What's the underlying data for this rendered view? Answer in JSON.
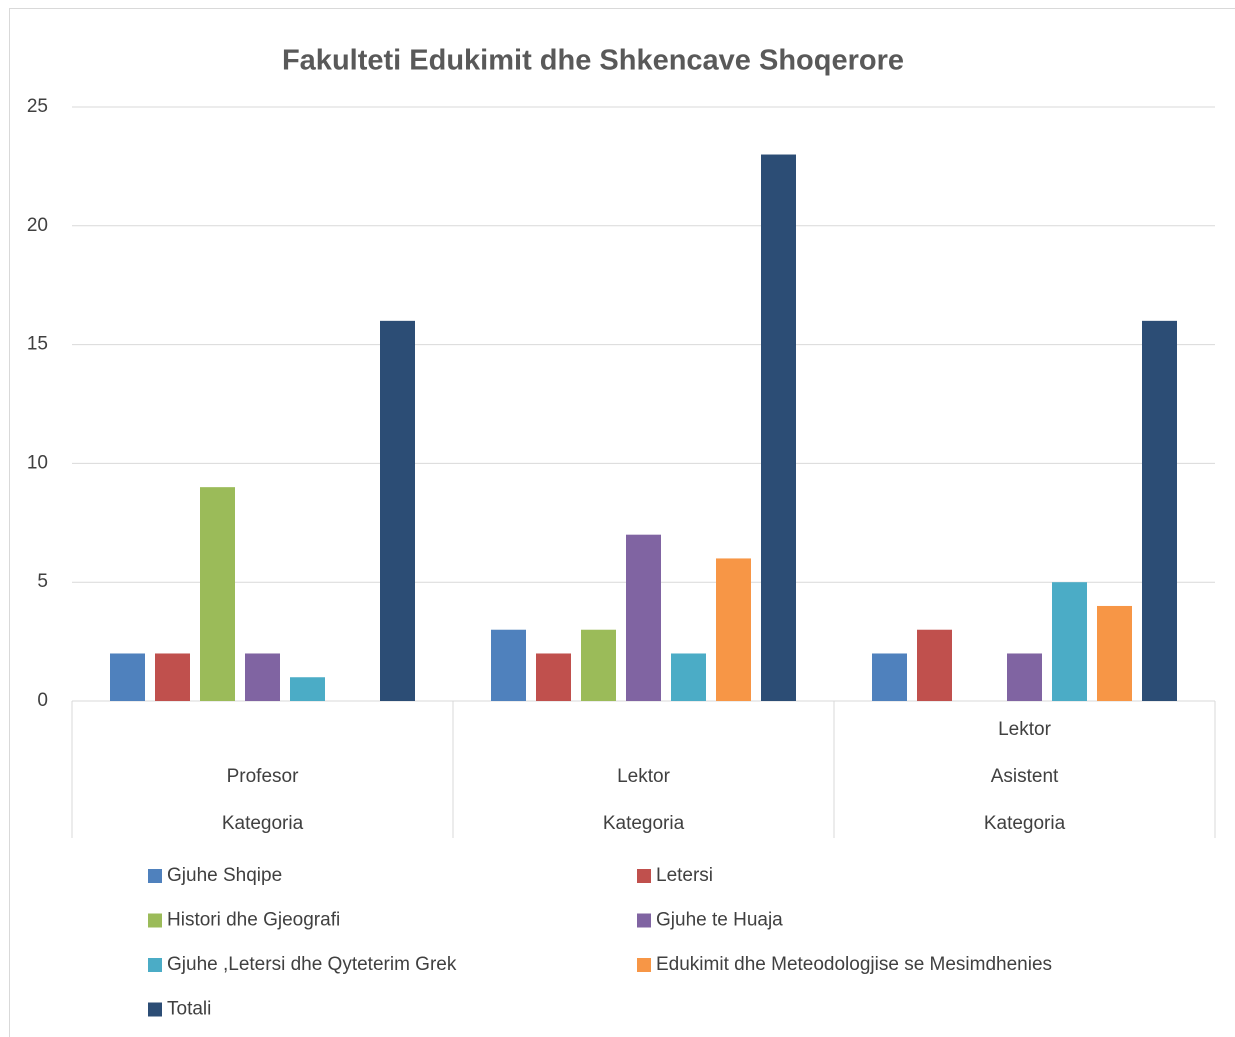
{
  "chart_data": {
    "type": "bar",
    "title": "Fakulteti  Edukimit dhe Shkencave Shoqerore",
    "categories": [
      [
        "Profesor",
        "Kategoria"
      ],
      [
        "Lektor",
        "Kategoria"
      ],
      [
        "Lektor",
        "Asistent",
        "Kategoria"
      ]
    ],
    "series": [
      {
        "name": "Gjuhe Shqipe",
        "color": "#4f81bd",
        "values": [
          2,
          3,
          2
        ]
      },
      {
        "name": "Letersi",
        "color": "#c0504d",
        "values": [
          2,
          2,
          3
        ]
      },
      {
        "name": "Histori dhe Gjeografi",
        "color": "#9bbb59",
        "values": [
          9,
          3,
          null
        ]
      },
      {
        "name": "Gjuhe te Huaja",
        "color": "#8064a2",
        "values": [
          2,
          7,
          2
        ]
      },
      {
        "name": "Gjuhe ,Letersi dhe Qyteterim Grek",
        "color": "#4bacc6",
        "values": [
          1,
          2,
          5
        ]
      },
      {
        "name": "Edukimit dhe Meteodologjise se Mesimdhenies",
        "color": "#f79646",
        "values": [
          null,
          6,
          4
        ]
      },
      {
        "name": "Totali",
        "color": "#2c4d75",
        "values": [
          16,
          23,
          16
        ]
      }
    ],
    "ylim": [
      0,
      25
    ],
    "yticks": [
      0,
      5,
      10,
      15,
      20,
      25
    ],
    "grid": true,
    "legend": "bottom"
  }
}
